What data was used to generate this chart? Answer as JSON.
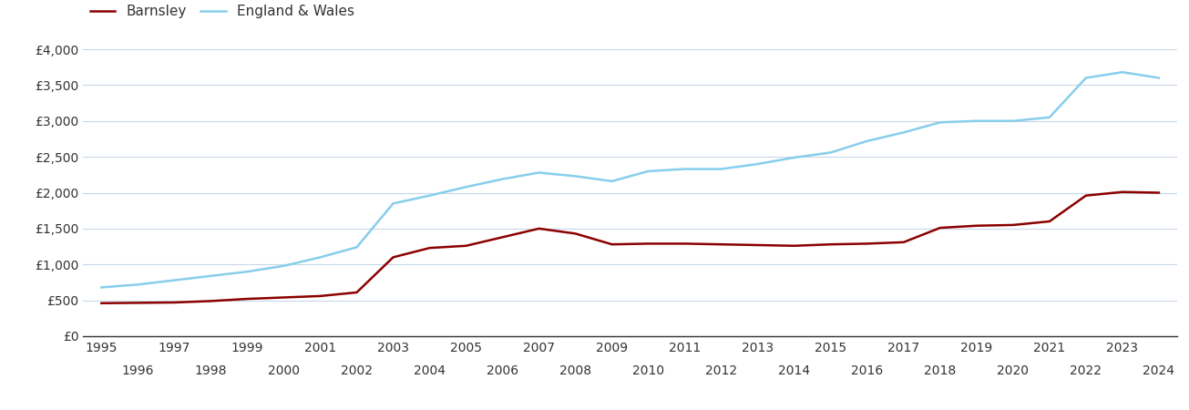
{
  "barnsley_years": [
    1995,
    1996,
    1997,
    1998,
    1999,
    2000,
    2001,
    2002,
    2003,
    2004,
    2005,
    2006,
    2007,
    2008,
    2009,
    2010,
    2011,
    2012,
    2013,
    2014,
    2015,
    2016,
    2017,
    2018,
    2019,
    2020,
    2021,
    2022,
    2023,
    2024
  ],
  "barnsley_values": [
    460,
    465,
    470,
    490,
    520,
    540,
    560,
    610,
    1100,
    1230,
    1260,
    1380,
    1500,
    1430,
    1280,
    1290,
    1290,
    1280,
    1270,
    1260,
    1280,
    1290,
    1310,
    1510,
    1540,
    1550,
    1600,
    1960,
    2010,
    2000
  ],
  "ew_years": [
    1995,
    1996,
    1997,
    1998,
    1999,
    2000,
    2001,
    2002,
    2003,
    2004,
    2005,
    2006,
    2007,
    2008,
    2009,
    2010,
    2011,
    2012,
    2013,
    2014,
    2015,
    2016,
    2017,
    2018,
    2019,
    2020,
    2021,
    2022,
    2023,
    2024
  ],
  "ew_values": [
    680,
    720,
    780,
    840,
    900,
    980,
    1100,
    1240,
    1850,
    1960,
    2080,
    2190,
    2280,
    2230,
    2160,
    2300,
    2330,
    2330,
    2400,
    2490,
    2560,
    2720,
    2840,
    2980,
    3000,
    3000,
    3050,
    3600,
    3680,
    3600
  ],
  "barnsley_color": "#8B0000",
  "ew_color": "#87CEEB",
  "barnsley_label": "Barnsley",
  "ew_label": "England & Wales",
  "ylim": [
    0,
    4000
  ],
  "yticks": [
    0,
    500,
    1000,
    1500,
    2000,
    2500,
    3000,
    3500,
    4000
  ],
  "ytick_labels": [
    "£0",
    "£500",
    "£1,000",
    "£1,500",
    "£2,000",
    "£2,500",
    "£3,000",
    "£3,500",
    "£4,000"
  ],
  "bg_color": "#ffffff",
  "grid_color": "#c8d8e8",
  "line_width": 1.8,
  "legend_fontsize": 11,
  "tick_fontsize": 10,
  "axis_tick_color": "#333333"
}
